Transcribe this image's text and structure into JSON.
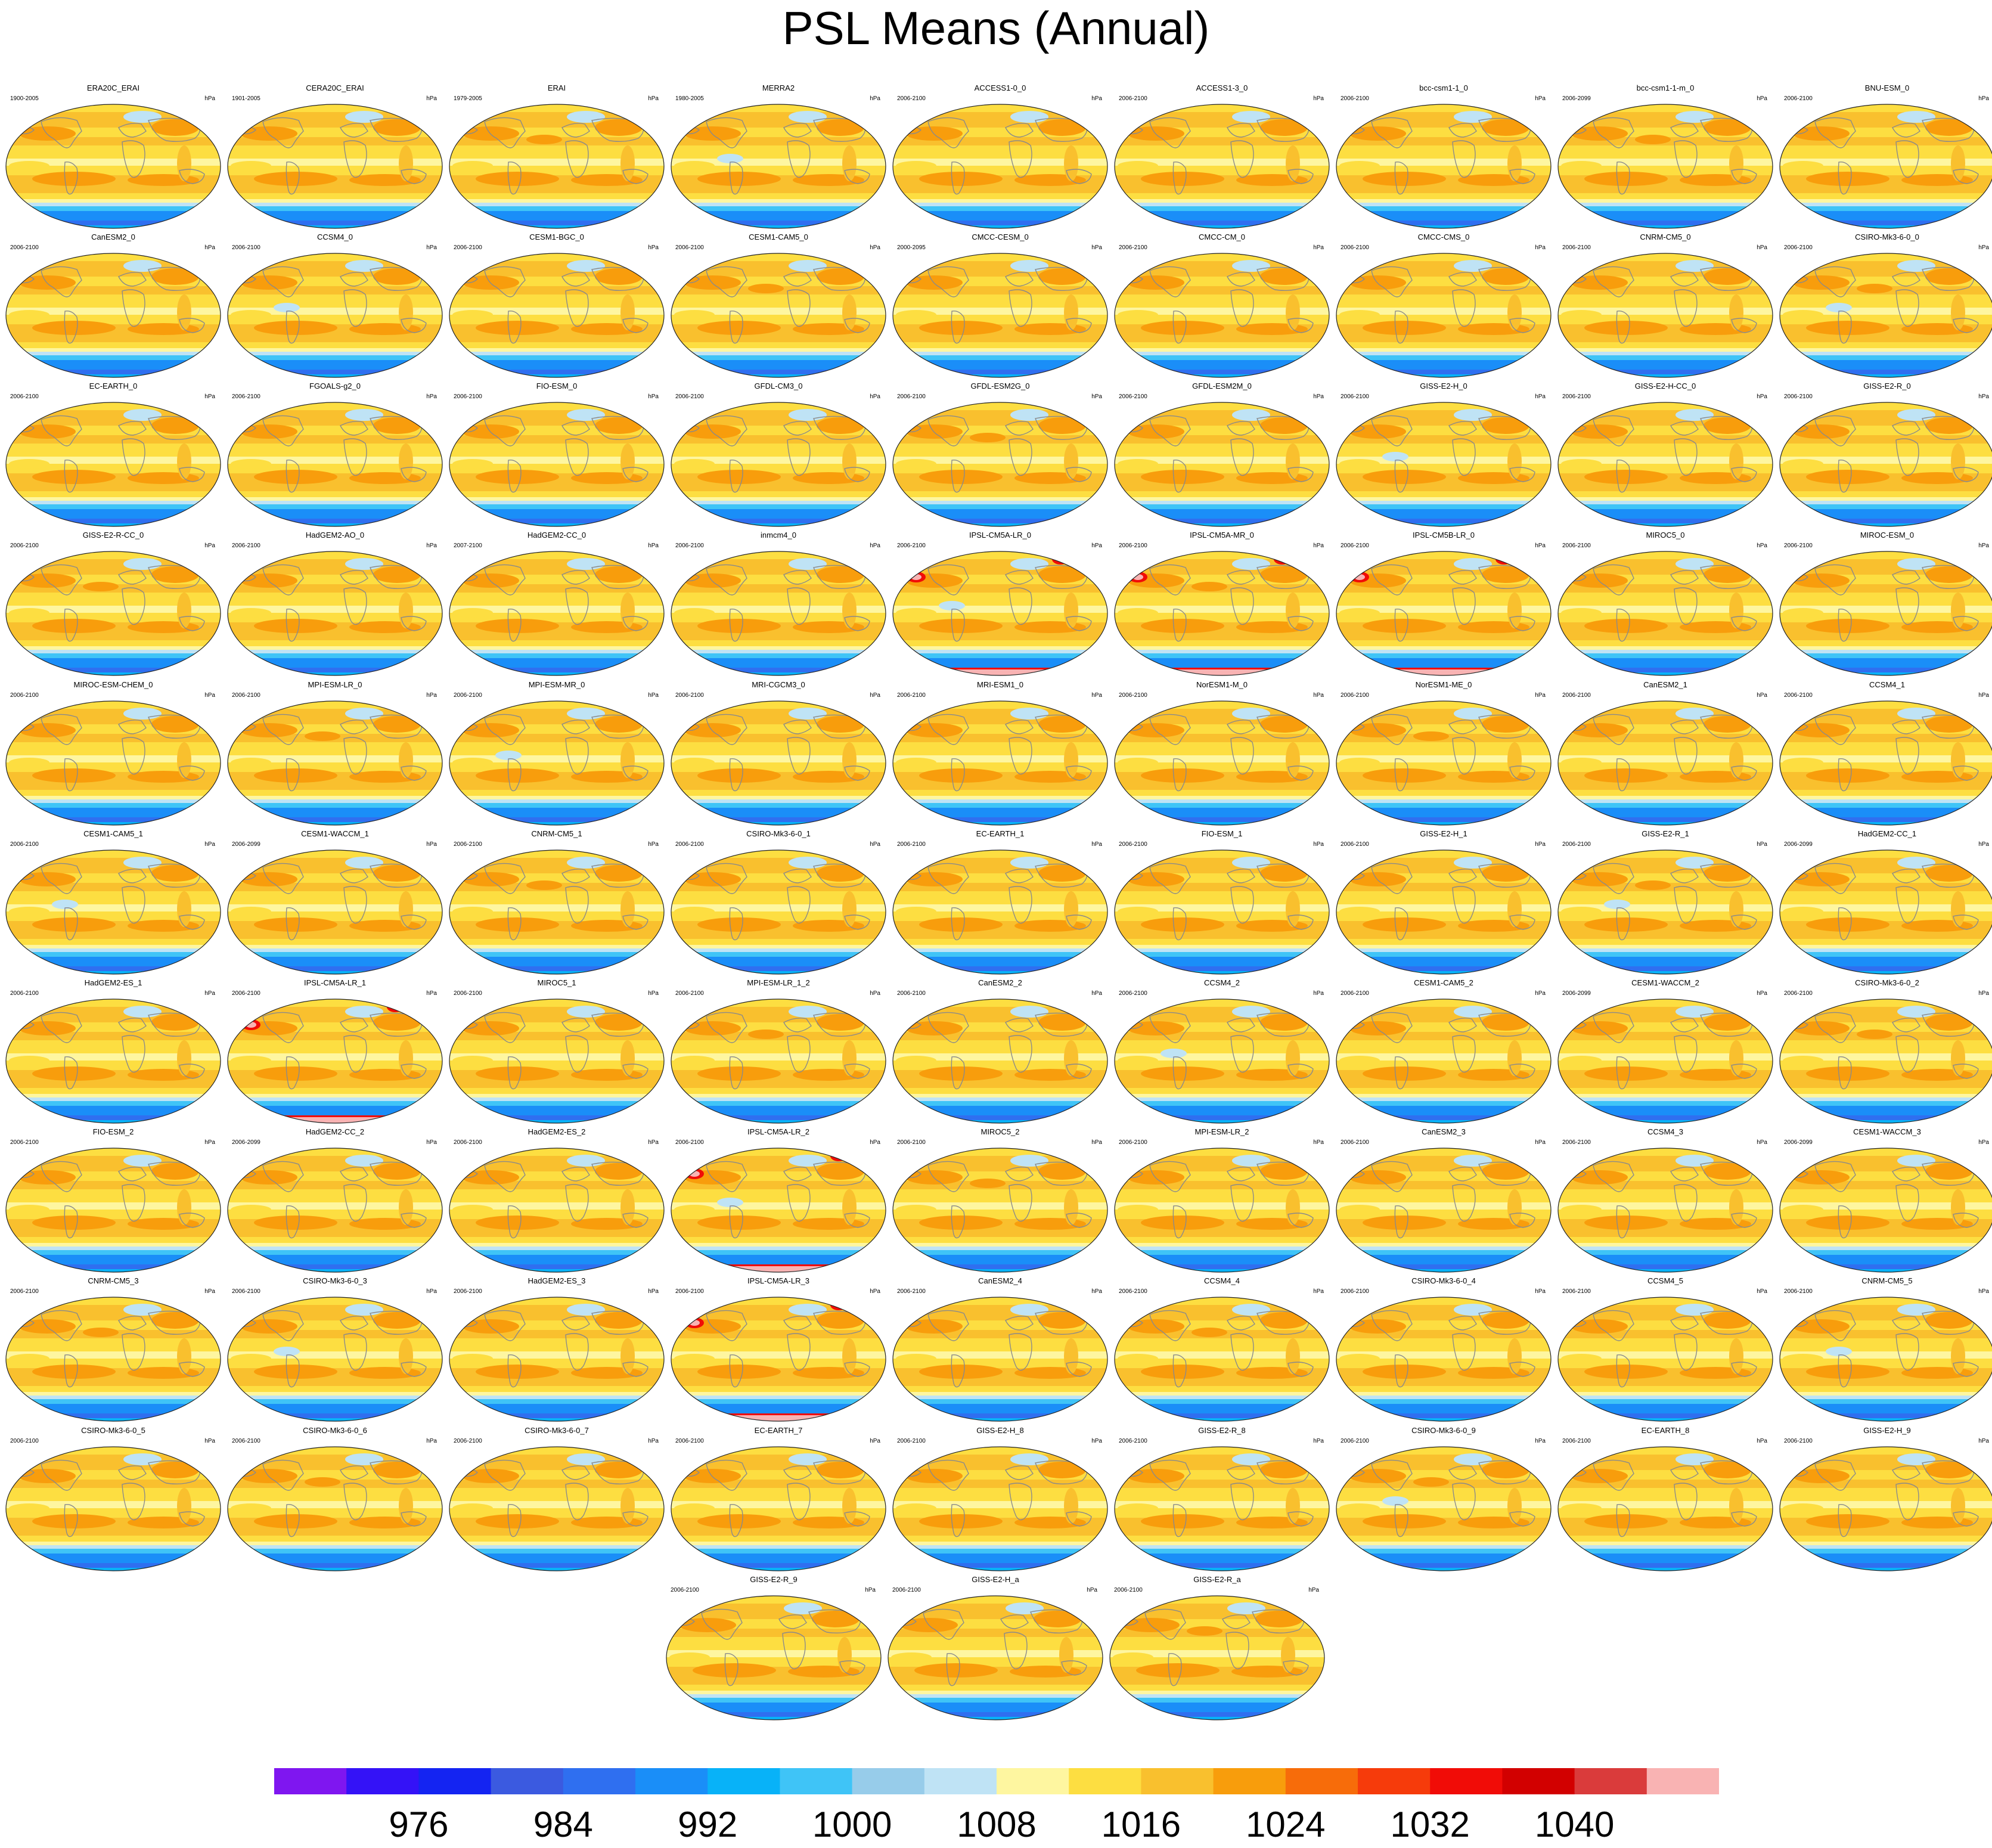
{
  "title": "PSL Means (Annual)",
  "units": "hPa",
  "colorbar": {
    "colors": [
      "#7f16f0",
      "#3412f7",
      "#1424f2",
      "#3b5ae0",
      "#2f6ff0",
      "#1a8ef8",
      "#08b2f8",
      "#3fc4f7",
      "#97ccea",
      "#bfe3f5",
      "#fef6a0",
      "#fdde41",
      "#f9c02e",
      "#f89d0c",
      "#f76c0a",
      "#f63b0b",
      "#f10c07",
      "#d20000",
      "#da3b3b",
      "#f9b3b3"
    ],
    "tick_values": [
      "976",
      "984",
      "992",
      "1000",
      "1008",
      "1016",
      "1024",
      "1032",
      "1040"
    ],
    "tick_index": [
      2,
      4,
      6,
      8,
      10,
      12,
      14,
      16,
      18
    ]
  },
  "panels": [
    {
      "name": "ERA20C_ERAI",
      "period": "1900-2005",
      "unit": "hPa"
    },
    {
      "name": "CERA20C_ERAI",
      "period": "1901-2005",
      "unit": "hPa"
    },
    {
      "name": "ERAI",
      "period": "1979-2005",
      "unit": "hPa"
    },
    {
      "name": "MERRA2",
      "period": "1980-2005",
      "unit": "hPa"
    },
    {
      "name": "ACCESS1-0_0",
      "period": "2006-2100",
      "unit": "hPa"
    },
    {
      "name": "ACCESS1-3_0",
      "period": "2006-2100",
      "unit": "hPa"
    },
    {
      "name": "bcc-csm1-1_0",
      "period": "2006-2100",
      "unit": "hPa"
    },
    {
      "name": "bcc-csm1-1-m_0",
      "period": "2006-2099",
      "unit": "hPa"
    },
    {
      "name": "BNU-ESM_0",
      "period": "2006-2100",
      "unit": "hPa"
    },
    {
      "name": "CanESM2_0",
      "period": "2006-2100",
      "unit": "hPa"
    },
    {
      "name": "CCSM4_0",
      "period": "2006-2100",
      "unit": "hPa"
    },
    {
      "name": "CESM1-BGC_0",
      "period": "2006-2100",
      "unit": "hPa"
    },
    {
      "name": "CESM1-CAM5_0",
      "period": "2006-2100",
      "unit": "hPa"
    },
    {
      "name": "CMCC-CESM_0",
      "period": "2000-2095",
      "unit": "hPa"
    },
    {
      "name": "CMCC-CM_0",
      "period": "2006-2100",
      "unit": "hPa"
    },
    {
      "name": "CMCC-CMS_0",
      "period": "2006-2100",
      "unit": "hPa"
    },
    {
      "name": "CNRM-CM5_0",
      "period": "2006-2100",
      "unit": "hPa"
    },
    {
      "name": "CSIRO-Mk3-6-0_0",
      "period": "2006-2100",
      "unit": "hPa"
    },
    {
      "name": "EC-EARTH_0",
      "period": "2006-2100",
      "unit": "hPa"
    },
    {
      "name": "FGOALS-g2_0",
      "period": "2006-2100",
      "unit": "hPa"
    },
    {
      "name": "FIO-ESM_0",
      "period": "2006-2100",
      "unit": "hPa"
    },
    {
      "name": "GFDL-CM3_0",
      "period": "2006-2100",
      "unit": "hPa"
    },
    {
      "name": "GFDL-ESM2G_0",
      "period": "2006-2100",
      "unit": "hPa"
    },
    {
      "name": "GFDL-ESM2M_0",
      "period": "2006-2100",
      "unit": "hPa"
    },
    {
      "name": "GISS-E2-H_0",
      "period": "2006-2100",
      "unit": "hPa"
    },
    {
      "name": "GISS-E2-H-CC_0",
      "period": "2006-2100",
      "unit": "hPa"
    },
    {
      "name": "GISS-E2-R_0",
      "period": "2006-2100",
      "unit": "hPa"
    },
    {
      "name": "GISS-E2-R-CC_0",
      "period": "2006-2100",
      "unit": "hPa"
    },
    {
      "name": "HadGEM2-AO_0",
      "period": "2006-2100",
      "unit": "hPa"
    },
    {
      "name": "HadGEM2-CC_0",
      "period": "2007-2100",
      "unit": "hPa"
    },
    {
      "name": "inmcm4_0",
      "period": "2006-2100",
      "unit": "hPa"
    },
    {
      "name": "IPSL-CM5A-LR_0",
      "period": "2006-2100",
      "unit": "hPa"
    },
    {
      "name": "IPSL-CM5A-MR_0",
      "period": "2006-2100",
      "unit": "hPa"
    },
    {
      "name": "IPSL-CM5B-LR_0",
      "period": "2006-2100",
      "unit": "hPa"
    },
    {
      "name": "MIROC5_0",
      "period": "2006-2100",
      "unit": "hPa"
    },
    {
      "name": "MIROC-ESM_0",
      "period": "2006-2100",
      "unit": "hPa"
    },
    {
      "name": "MIROC-ESM-CHEM_0",
      "period": "2006-2100",
      "unit": "hPa"
    },
    {
      "name": "MPI-ESM-LR_0",
      "period": "2006-2100",
      "unit": "hPa"
    },
    {
      "name": "MPI-ESM-MR_0",
      "period": "2006-2100",
      "unit": "hPa"
    },
    {
      "name": "MRI-CGCM3_0",
      "period": "2006-2100",
      "unit": "hPa"
    },
    {
      "name": "MRI-ESM1_0",
      "period": "2006-2100",
      "unit": "hPa"
    },
    {
      "name": "NorESM1-M_0",
      "period": "2006-2100",
      "unit": "hPa"
    },
    {
      "name": "NorESM1-ME_0",
      "period": "2006-2100",
      "unit": "hPa"
    },
    {
      "name": "CanESM2_1",
      "period": "2006-2100",
      "unit": "hPa"
    },
    {
      "name": "CCSM4_1",
      "period": "2006-2100",
      "unit": "hPa"
    },
    {
      "name": "CESM1-CAM5_1",
      "period": "2006-2100",
      "unit": "hPa"
    },
    {
      "name": "CESM1-WACCM_1",
      "period": "2006-2099",
      "unit": "hPa"
    },
    {
      "name": "CNRM-CM5_1",
      "period": "2006-2100",
      "unit": "hPa"
    },
    {
      "name": "CSIRO-Mk3-6-0_1",
      "period": "2006-2100",
      "unit": "hPa"
    },
    {
      "name": "EC-EARTH_1",
      "period": "2006-2100",
      "unit": "hPa"
    },
    {
      "name": "FIO-ESM_1",
      "period": "2006-2100",
      "unit": "hPa"
    },
    {
      "name": "GISS-E2-H_1",
      "period": "2006-2100",
      "unit": "hPa"
    },
    {
      "name": "GISS-E2-R_1",
      "period": "2006-2100",
      "unit": "hPa"
    },
    {
      "name": "HadGEM2-CC_1",
      "period": "2006-2099",
      "unit": "hPa"
    },
    {
      "name": "HadGEM2-ES_1",
      "period": "2006-2100",
      "unit": "hPa"
    },
    {
      "name": "IPSL-CM5A-LR_1",
      "period": "2006-2100",
      "unit": "hPa"
    },
    {
      "name": "MIROC5_1",
      "period": "2006-2100",
      "unit": "hPa"
    },
    {
      "name": "MPI-ESM-LR_1_2",
      "period": "2006-2100",
      "unit": "hPa"
    },
    {
      "name": "CanESM2_2",
      "period": "2006-2100",
      "unit": "hPa"
    },
    {
      "name": "CCSM4_2",
      "period": "2006-2100",
      "unit": "hPa"
    },
    {
      "name": "CESM1-CAM5_2",
      "period": "2006-2100",
      "unit": "hPa"
    },
    {
      "name": "CESM1-WACCM_2",
      "period": "2006-2099",
      "unit": "hPa"
    },
    {
      "name": "CSIRO-Mk3-6-0_2",
      "period": "2006-2100",
      "unit": "hPa"
    },
    {
      "name": "FIO-ESM_2",
      "period": "2006-2100",
      "unit": "hPa"
    },
    {
      "name": "HadGEM2-CC_2",
      "period": "2006-2099",
      "unit": "hPa"
    },
    {
      "name": "HadGEM2-ES_2",
      "period": "2006-2100",
      "unit": "hPa"
    },
    {
      "name": "IPSL-CM5A-LR_2",
      "period": "2006-2100",
      "unit": "hPa"
    },
    {
      "name": "MIROC5_2",
      "period": "2006-2100",
      "unit": "hPa"
    },
    {
      "name": "MPI-ESM-LR_2",
      "period": "2006-2100",
      "unit": "hPa"
    },
    {
      "name": "CanESM2_3",
      "period": "2006-2100",
      "unit": "hPa"
    },
    {
      "name": "CCSM4_3",
      "period": "2006-2100",
      "unit": "hPa"
    },
    {
      "name": "CESM1-WACCM_3",
      "period": "2006-2099",
      "unit": "hPa"
    },
    {
      "name": "CNRM-CM5_3",
      "period": "2006-2100",
      "unit": "hPa"
    },
    {
      "name": "CSIRO-Mk3-6-0_3",
      "period": "2006-2100",
      "unit": "hPa"
    },
    {
      "name": "HadGEM2-ES_3",
      "period": "2006-2100",
      "unit": "hPa"
    },
    {
      "name": "IPSL-CM5A-LR_3",
      "period": "2006-2100",
      "unit": "hPa"
    },
    {
      "name": "CanESM2_4",
      "period": "2006-2100",
      "unit": "hPa"
    },
    {
      "name": "CCSM4_4",
      "period": "2006-2100",
      "unit": "hPa"
    },
    {
      "name": "CSIRO-Mk3-6-0_4",
      "period": "2006-2100",
      "unit": "hPa"
    },
    {
      "name": "CCSM4_5",
      "period": "2006-2100",
      "unit": "hPa"
    },
    {
      "name": "CNRM-CM5_5",
      "period": "2006-2100",
      "unit": "hPa"
    },
    {
      "name": "CSIRO-Mk3-6-0_5",
      "period": "2006-2100",
      "unit": "hPa"
    },
    {
      "name": "CSIRO-Mk3-6-0_6",
      "period": "2006-2100",
      "unit": "hPa"
    },
    {
      "name": "CSIRO-Mk3-6-0_7",
      "period": "2006-2100",
      "unit": "hPa"
    },
    {
      "name": "EC-EARTH_7",
      "period": "2006-2100",
      "unit": "hPa"
    },
    {
      "name": "GISS-E2-H_8",
      "period": "2006-2100",
      "unit": "hPa"
    },
    {
      "name": "GISS-E2-R_8",
      "period": "2006-2100",
      "unit": "hPa"
    },
    {
      "name": "CSIRO-Mk3-6-0_9",
      "period": "2006-2100",
      "unit": "hPa"
    },
    {
      "name": "EC-EARTH_8",
      "period": "2006-2100",
      "unit": "hPa"
    },
    {
      "name": "GISS-E2-H_9",
      "period": "2006-2100",
      "unit": "hPa"
    },
    {
      "name": "GISS-E2-R_9",
      "period": "2006-2100",
      "unit": "hPa"
    },
    {
      "name": "GISS-E2-H_a",
      "period": "2006-2100",
      "unit": "hPa"
    },
    {
      "name": "GISS-E2-R_a",
      "period": "2006-2100",
      "unit": "hPa"
    }
  ]
}
